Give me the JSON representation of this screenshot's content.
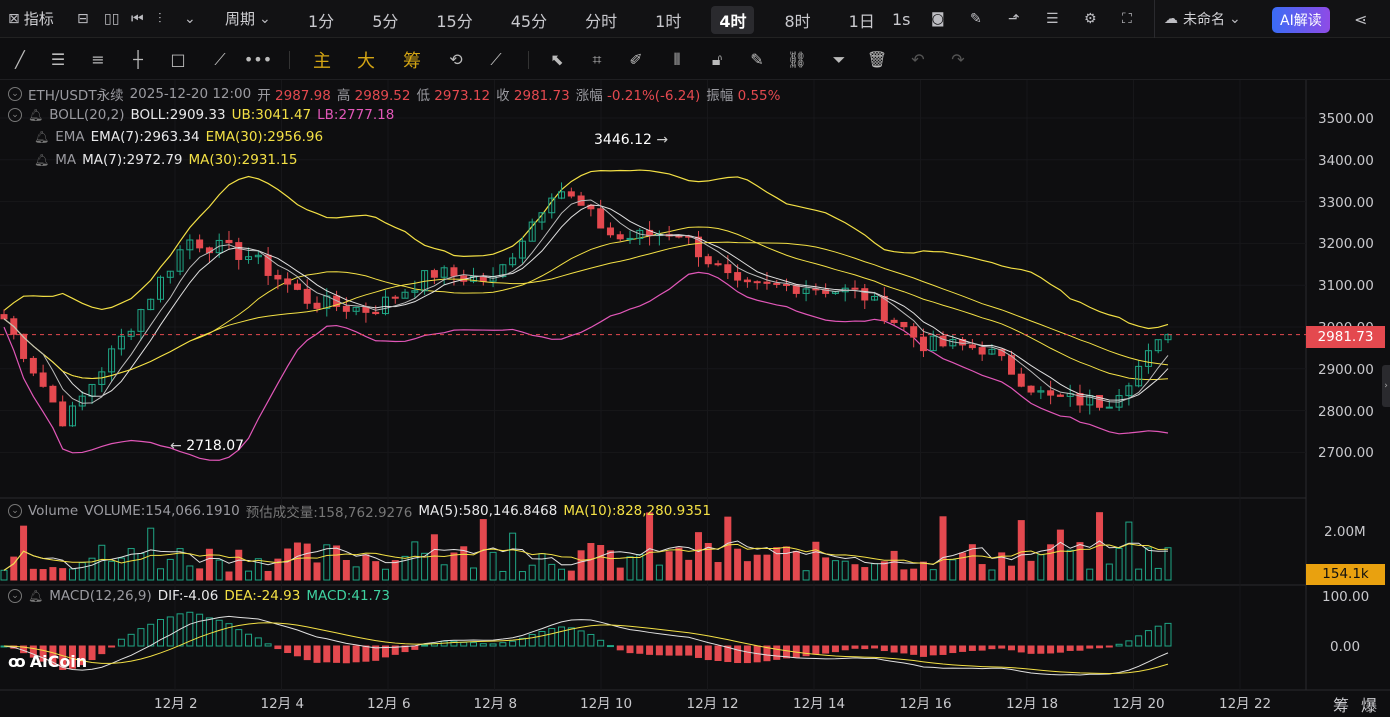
{
  "topbar": {
    "indicators": "指标",
    "period_label": "周期",
    "periods": [
      "1分",
      "5分",
      "15分",
      "45分",
      "分时",
      "1时",
      "4时",
      "8时",
      "1日"
    ],
    "active_period": "4时",
    "interval": "1s",
    "layout_name": "未命名",
    "ai_button": "AI解读"
  },
  "toolbar2": {
    "main": "主",
    "big": "大",
    "chips": "筹"
  },
  "ohlc": {
    "symbol": "ETH/USDT永续",
    "time": "2025-12-20 12:00",
    "open_label": "开",
    "open": "2987.98",
    "high_label": "高",
    "high": "2989.52",
    "low_label": "低",
    "low": "2973.12",
    "close_label": "收",
    "close": "2981.73",
    "change_label": "涨幅",
    "change": "-0.21%(-6.24)",
    "amp_label": "振幅",
    "amp": "0.55%"
  },
  "boll": {
    "name": "BOLL(20,2)",
    "mid": "BOLL:2909.33",
    "ub": "UB:3041.47",
    "lb": "LB:2777.18"
  },
  "ema": {
    "name": "EMA",
    "ema7": "EMA(7):2963.34",
    "ema30": "EMA(30):2956.96"
  },
  "ma": {
    "name": "MA",
    "ma7": "MA(7):2972.79",
    "ma30": "MA(30):2931.15"
  },
  "volume": {
    "name": "Volume",
    "vol": "VOLUME:154,066.1910",
    "est": "预估成交量:158,762.9276",
    "ma5": "MA(5):580,146.8468",
    "ma10": "MA(10):828,280.9351",
    "axis_top": "2.00M",
    "current": "154.1k"
  },
  "macd": {
    "name": "MACD(12,26,9)",
    "dif": "DIF:-4.06",
    "dea": "DEA:-24.93",
    "macd": "MACD:41.73",
    "axis_top": "100.00",
    "axis_zero": "0.00"
  },
  "price_axis": [
    "3500.00",
    "3400.00",
    "3300.00",
    "3200.00",
    "3100.00",
    "3000.00",
    "2900.00",
    "2800.00",
    "2700.00"
  ],
  "current_price": "2981.73",
  "annotations": {
    "high": "3446.12",
    "low": "2718.07"
  },
  "date_axis": [
    "12月 2",
    "12月 4",
    "12月 6",
    "12月 8",
    "12月 10",
    "12月 12",
    "12月 14",
    "12月 16",
    "12月 18",
    "12月 20",
    "12月 22"
  ],
  "bottom_right": [
    "筹",
    "爆"
  ],
  "watermark": "AiCoin",
  "colors": {
    "up": "#1fa585",
    "down": "#e4494f",
    "boll": "#f3e045",
    "lb": "#e157b8",
    "ma": "#d9d9d9"
  },
  "chart_data": {
    "type": "candlestick",
    "interval": "4h",
    "ylim": [
      2650,
      3550
    ],
    "approx_close_path": [
      {
        "date": "12月 1",
        "close": 3020
      },
      {
        "date": "12月 2",
        "close": 2770
      },
      {
        "date": "12月 3",
        "close": 2990
      },
      {
        "date": "12月 4",
        "close": 3210
      },
      {
        "date": "12月 5",
        "close": 3170
      },
      {
        "date": "12月 6",
        "close": 3060
      },
      {
        "date": "12月 7",
        "close": 3040
      },
      {
        "date": "12月 8",
        "close": 3130
      },
      {
        "date": "12月 9",
        "close": 3110
      },
      {
        "date": "12月 10",
        "close": 3340
      },
      {
        "date": "12月 11",
        "close": 3210
      },
      {
        "date": "12月 12",
        "close": 3230
      },
      {
        "date": "12月 13",
        "close": 3090
      },
      {
        "date": "12月 14",
        "close": 3100
      },
      {
        "date": "12月 15",
        "close": 3080
      },
      {
        "date": "12月 16",
        "close": 2960
      },
      {
        "date": "12月 17",
        "close": 2950
      },
      {
        "date": "12月 18",
        "close": 2830
      },
      {
        "date": "12月 19",
        "close": 2820
      },
      {
        "date": "12月 20",
        "close": 2981.73
      }
    ]
  }
}
